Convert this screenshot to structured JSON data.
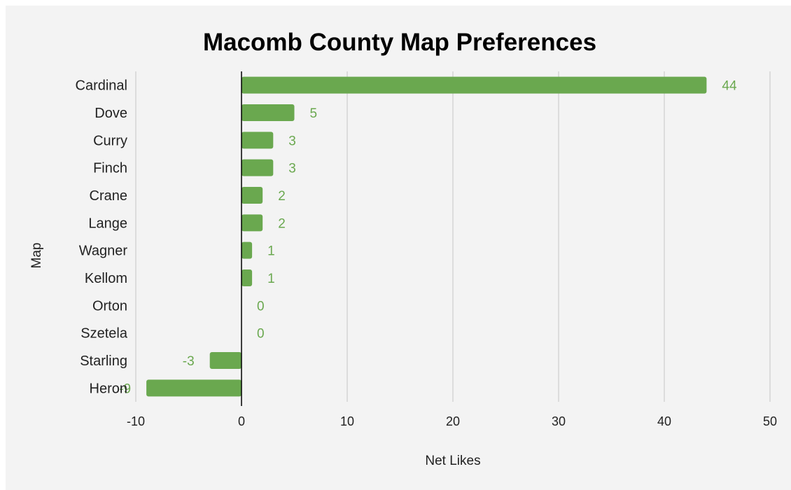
{
  "chart_data": {
    "type": "bar",
    "orientation": "horizontal",
    "title": "Macomb County Map Preferences",
    "xlabel": "Net Likes",
    "ylabel": "Map",
    "xlim": [
      -10,
      50
    ],
    "xticks": [
      -10,
      0,
      10,
      20,
      30,
      40,
      50
    ],
    "categories": [
      "Cardinal",
      "Dove",
      "Curry",
      "Finch",
      "Crane",
      "Lange",
      "Wagner",
      "Kellom",
      "Orton",
      "Szetela",
      "Starling",
      "Heron"
    ],
    "values": [
      44,
      5,
      3,
      3,
      2,
      2,
      1,
      1,
      0,
      0,
      -3,
      -9
    ],
    "data_labels": [
      "44",
      "5",
      "3",
      "3",
      "2",
      "2",
      "1",
      "1",
      "0",
      "0",
      "-3",
      "-9"
    ],
    "grid": "vertical",
    "legend": "none",
    "colors": {
      "bar": "#6aa84f",
      "label": "#6aa84f",
      "background": "#f3f3f3",
      "gridline": "#cccccc",
      "zero_line": "#000000"
    }
  }
}
